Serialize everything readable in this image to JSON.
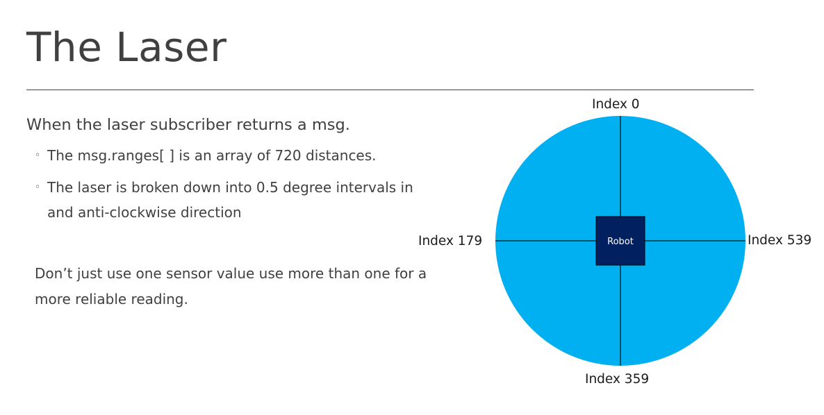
{
  "slide": {
    "title": "The Laser",
    "intro": "When the laser subscriber returns a msg.",
    "bullets": [
      "The msg.ranges[ ] is an array of 720 distances.",
      "The laser is broken down into 0.5 degree intervals in and anti-clockwise direction"
    ],
    "note": "Don’t just use one sensor value use more than one for a more reliable reading."
  },
  "diagram": {
    "robot_label": "Robot",
    "index_top": "Index 0",
    "index_left": "Index 179",
    "index_right": "Index 539",
    "index_bottom": "Index 359",
    "circle_color": "#00b0f0",
    "robot_color": "#002060"
  }
}
